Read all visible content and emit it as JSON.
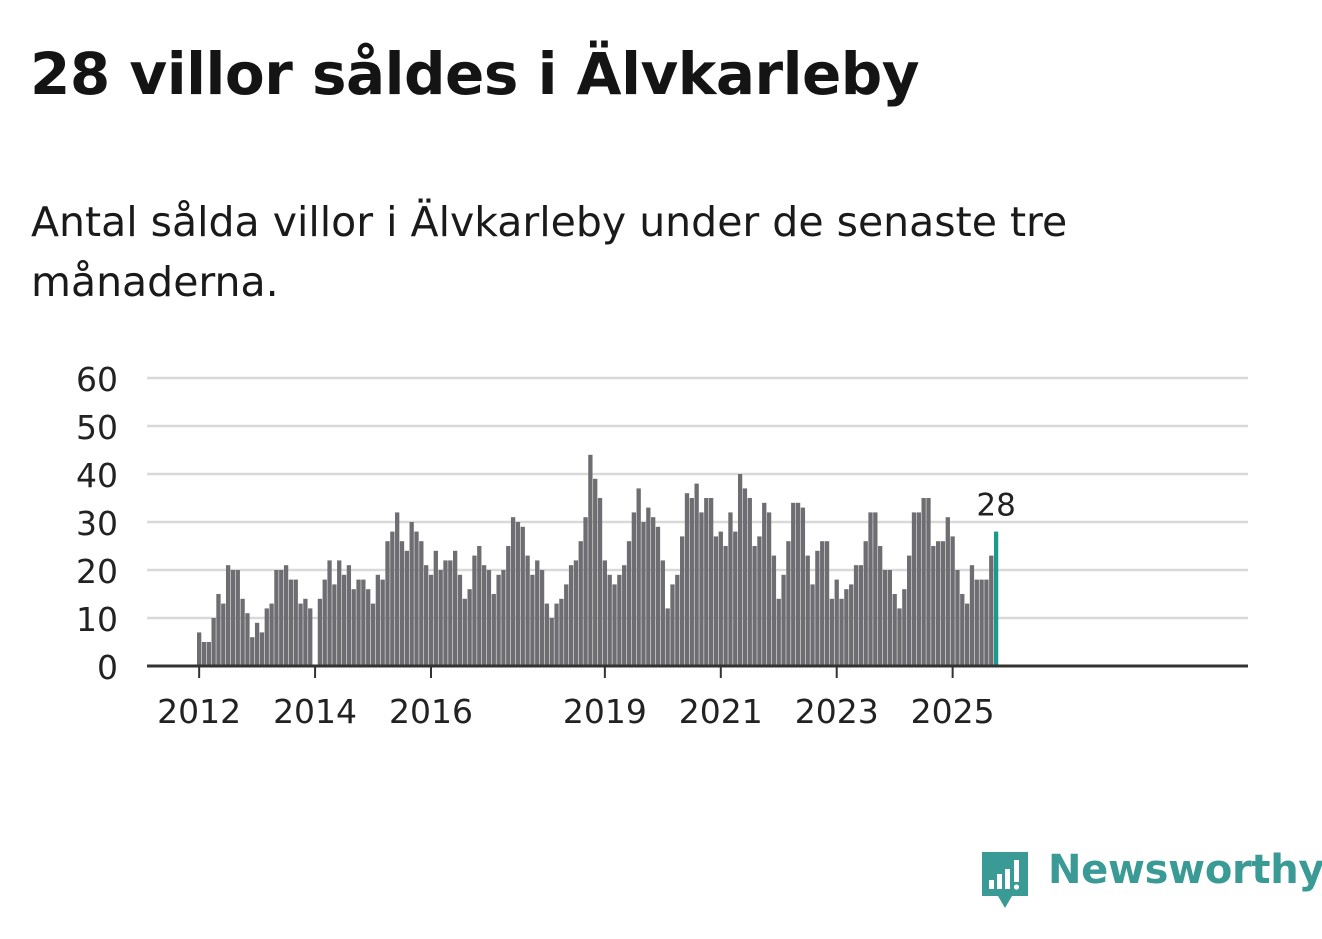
{
  "header": {
    "title": "28 villor såldes i Älvkarleby",
    "subtitle": "Antal sålda villor i Älvkarleby under de senaste tre månaderna."
  },
  "brand": {
    "name": "Newsworthy",
    "color": "#3a9a96"
  },
  "colors": {
    "bar": "#6e6d72",
    "highlight": "#1a9a8e",
    "grid": "#d9d9d9",
    "axis": "#333333"
  },
  "chart_data": {
    "type": "bar",
    "title": "Antal sålda villor i Älvkarleby under de senaste tre månaderna.",
    "xlabel": "",
    "ylabel": "",
    "ylim": [
      0,
      60
    ],
    "yticks": [
      0,
      10,
      20,
      30,
      40,
      50,
      60
    ],
    "start": "2012-01",
    "xtick_labels": [
      "2012",
      "2014",
      "2016",
      "2019",
      "2021",
      "2023",
      "2025"
    ],
    "highlight_label": "28",
    "values": [
      7,
      5,
      5,
      10,
      15,
      13,
      21,
      20,
      20,
      14,
      11,
      6,
      9,
      7,
      12,
      13,
      20,
      20,
      21,
      18,
      18,
      13,
      14,
      12,
      null,
      14,
      18,
      22,
      17,
      22,
      19,
      21,
      16,
      18,
      18,
      16,
      13,
      19,
      18,
      26,
      28,
      32,
      26,
      24,
      30,
      28,
      26,
      21,
      19,
      24,
      20,
      22,
      22,
      24,
      19,
      14,
      16,
      23,
      25,
      21,
      20,
      15,
      19,
      20,
      25,
      31,
      30,
      29,
      23,
      19,
      22,
      20,
      13,
      10,
      13,
      14,
      17,
      21,
      22,
      26,
      31,
      44,
      39,
      35,
      22,
      19,
      17,
      19,
      21,
      26,
      32,
      37,
      30,
      33,
      31,
      29,
      22,
      12,
      17,
      19,
      27,
      36,
      35,
      38,
      32,
      35,
      35,
      27,
      28,
      25,
      32,
      28,
      40,
      37,
      35,
      25,
      27,
      34,
      32,
      23,
      14,
      19,
      26,
      34,
      34,
      33,
      23,
      17,
      24,
      26,
      26,
      14,
      18,
      14,
      16,
      17,
      21,
      21,
      26,
      32,
      32,
      25,
      20,
      20,
      15,
      12,
      16,
      23,
      32,
      32,
      35,
      35,
      25,
      26,
      26,
      31,
      27,
      20,
      15,
      13,
      21,
      18,
      18,
      18,
      23,
      28
    ]
  }
}
